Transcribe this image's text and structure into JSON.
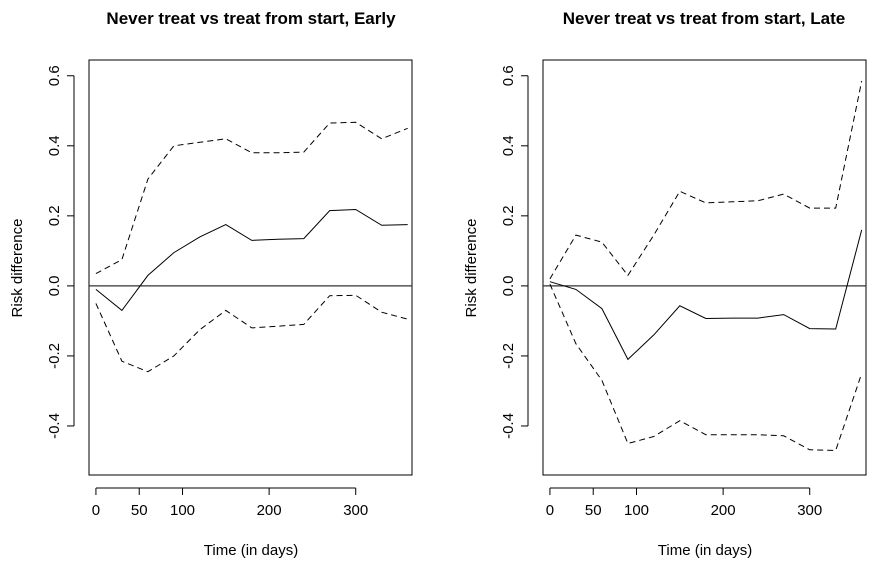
{
  "chart_data": [
    {
      "type": "line",
      "title": "Never treat vs treat from start, Early",
      "xlabel": "Time (in days)",
      "ylabel": "Risk difference",
      "xlim": [
        -8,
        365
      ],
      "ylim": [
        -0.54,
        0.645
      ],
      "xticks": [
        0,
        50,
        100,
        200,
        300
      ],
      "xtick_labels": [
        "0",
        "50",
        "100",
        "200",
        "300"
      ],
      "yticks": [
        -0.4,
        -0.2,
        0.0,
        0.2,
        0.4,
        0.6
      ],
      "ytick_labels": [
        "-0.4",
        "-0.2",
        "0.0",
        "0.2",
        "0.4",
        "0.6"
      ],
      "reference_line": 0,
      "grid": false,
      "series": [
        {
          "style": "solid",
          "x": [
            0,
            30,
            60,
            90,
            120,
            150,
            180,
            210,
            240,
            270,
            300,
            330,
            360
          ],
          "y": [
            -0.01,
            -0.07,
            0.03,
            0.095,
            0.14,
            0.175,
            0.13,
            0.133,
            0.135,
            0.215,
            0.218,
            0.173,
            0.175
          ]
        },
        {
          "style": "dashed",
          "x": [
            0,
            30,
            60,
            90,
            120,
            150,
            180,
            210,
            240,
            270,
            300,
            330,
            360
          ],
          "y": [
            0.035,
            0.075,
            0.305,
            0.4,
            0.41,
            0.42,
            0.38,
            0.38,
            0.382,
            0.465,
            0.467,
            0.42,
            0.45
          ]
        },
        {
          "style": "dashed",
          "x": [
            0,
            30,
            60,
            90,
            120,
            150,
            180,
            210,
            240,
            270,
            300,
            330,
            360
          ],
          "y": [
            -0.05,
            -0.215,
            -0.245,
            -0.2,
            -0.125,
            -0.07,
            -0.12,
            -0.115,
            -0.11,
            -0.028,
            -0.027,
            -0.075,
            -0.095
          ]
        }
      ]
    },
    {
      "type": "line",
      "title": "Never treat vs treat from start, Late",
      "xlabel": "Time (in days)",
      "ylabel": "Risk difference",
      "xlim": [
        -8,
        365
      ],
      "ylim": [
        -0.54,
        0.645
      ],
      "xticks": [
        0,
        50,
        100,
        200,
        300
      ],
      "xtick_labels": [
        "0",
        "50",
        "100",
        "200",
        "300"
      ],
      "yticks": [
        -0.4,
        -0.2,
        0.0,
        0.2,
        0.4,
        0.6
      ],
      "ytick_labels": [
        "-0.4",
        "-0.2",
        "0.0",
        "0.2",
        "0.4",
        "0.6"
      ],
      "reference_line": 0,
      "grid": false,
      "series": [
        {
          "style": "solid",
          "x": [
            0,
            30,
            60,
            90,
            120,
            150,
            180,
            210,
            240,
            270,
            300,
            330,
            360
          ],
          "y": [
            0.012,
            -0.01,
            -0.065,
            -0.21,
            -0.14,
            -0.057,
            -0.093,
            -0.092,
            -0.092,
            -0.082,
            -0.122,
            -0.123,
            0.16
          ]
        },
        {
          "style": "dashed",
          "x": [
            0,
            30,
            60,
            90,
            120,
            150,
            180,
            210,
            240,
            270,
            300,
            330,
            360
          ],
          "y": [
            0.02,
            0.145,
            0.125,
            0.03,
            0.145,
            0.27,
            0.237,
            0.24,
            0.243,
            0.262,
            0.222,
            0.222,
            0.585
          ]
        },
        {
          "style": "dashed",
          "x": [
            0,
            30,
            60,
            90,
            120,
            150,
            180,
            210,
            240,
            270,
            300,
            330,
            360
          ],
          "y": [
            0.005,
            -0.165,
            -0.27,
            -0.45,
            -0.43,
            -0.385,
            -0.425,
            -0.425,
            -0.425,
            -0.428,
            -0.468,
            -0.47,
            -0.25
          ]
        }
      ]
    }
  ]
}
